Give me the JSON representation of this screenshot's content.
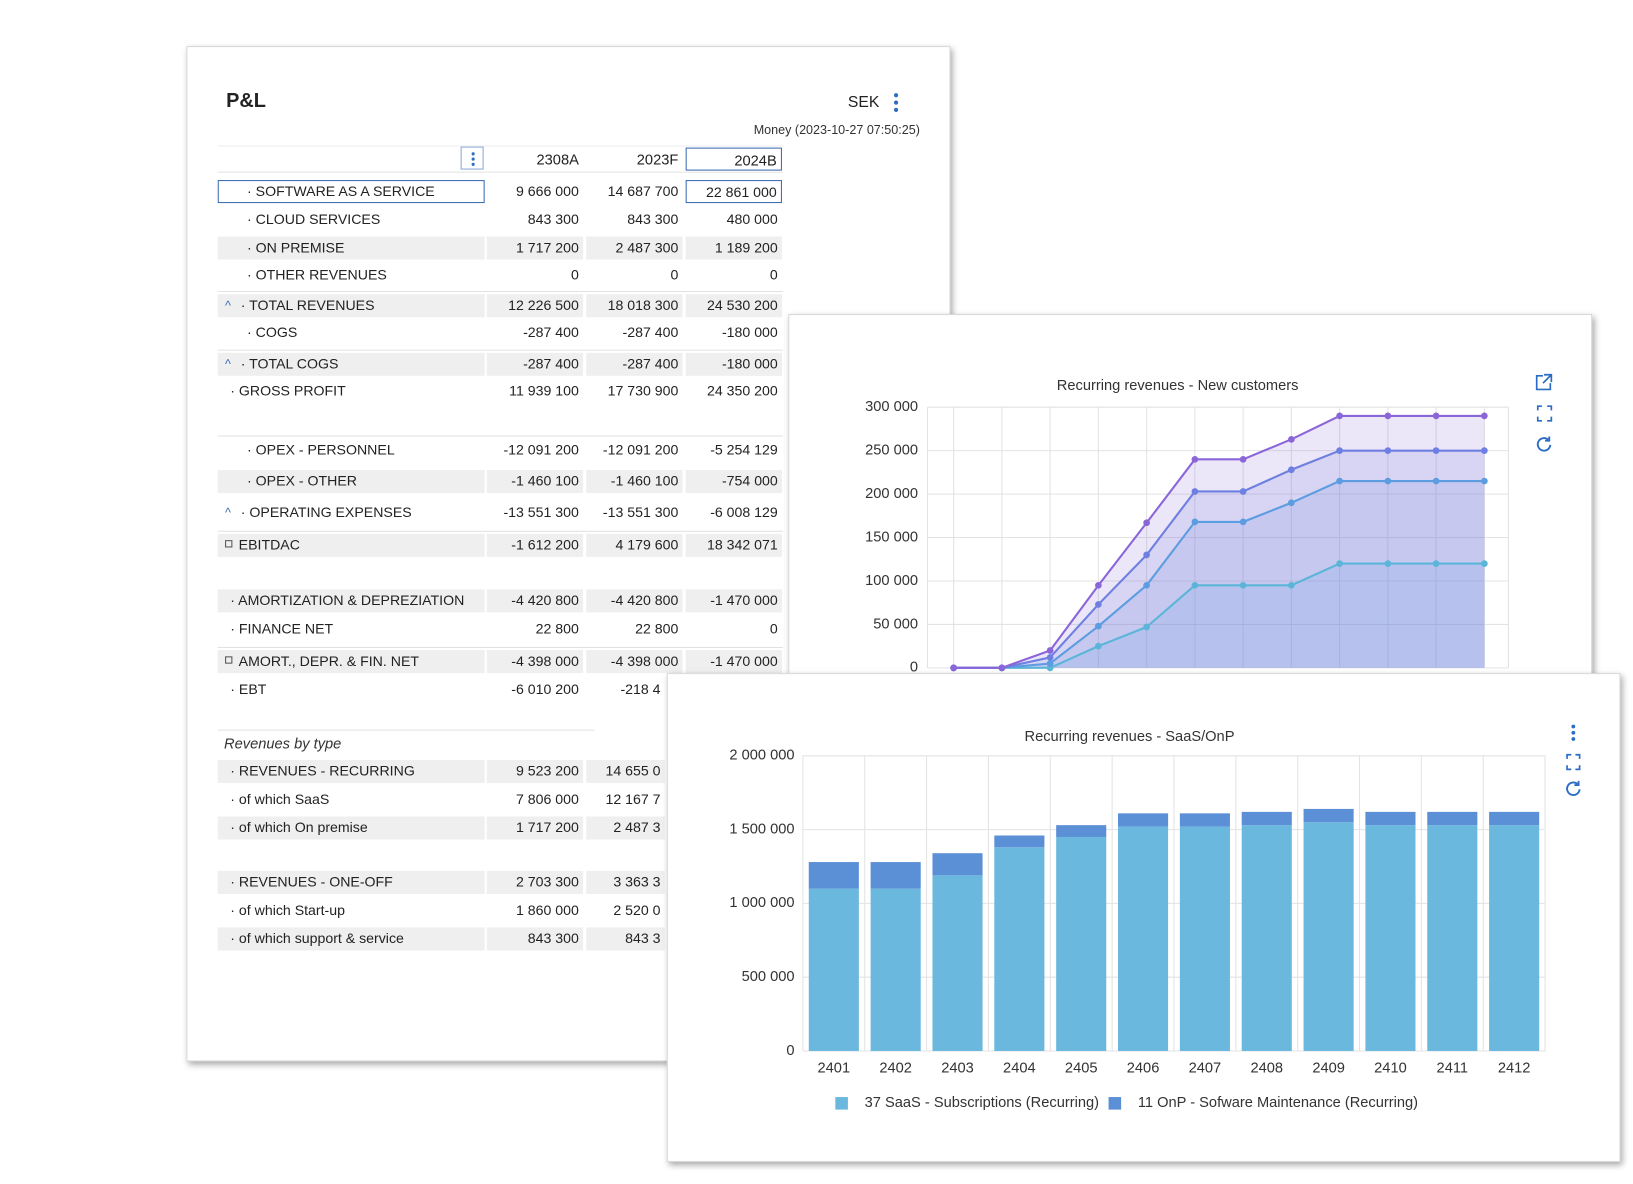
{
  "pnl": {
    "title": "P&L",
    "currency": "SEK",
    "timestamp": "Money (2023-10-27 07:50:25)",
    "columns": [
      "2308A",
      "2023F",
      "2024B"
    ],
    "rows": [
      {
        "label": "· SOFTWARE AS A SERVICE",
        "values": [
          "9 666 000",
          "14 687 700",
          "22 861 000"
        ]
      },
      {
        "label": "· CLOUD SERVICES",
        "values": [
          "843 300",
          "843 300",
          "480 000"
        ]
      },
      {
        "label": "· ON PREMISE",
        "values": [
          "1 717 200",
          "2 487 300",
          "1 189 200"
        ]
      },
      {
        "label": "· OTHER REVENUES",
        "values": [
          "0",
          "0",
          "0"
        ]
      },
      {
        "label": "· TOTAL REVENUES",
        "values": [
          "12 226 500",
          "18 018 300",
          "24 530 200"
        ]
      },
      {
        "label": "· COGS",
        "values": [
          "-287 400",
          "-287 400",
          "-180 000"
        ]
      },
      {
        "label": "· TOTAL COGS",
        "values": [
          "-287 400",
          "-287 400",
          "-180 000"
        ]
      },
      {
        "label": "· GROSS PROFIT",
        "values": [
          "11 939 100",
          "17 730 900",
          "24 350 200"
        ]
      },
      {
        "label": "· OPEX - PERSONNEL",
        "values": [
          "-12 091 200",
          "-12 091 200",
          "-5 254 129"
        ]
      },
      {
        "label": "· OPEX - OTHER",
        "values": [
          "-1 460 100",
          "-1 460 100",
          "-754 000"
        ]
      },
      {
        "label": "· OPERATING EXPENSES",
        "values": [
          "-13 551 300",
          "-13 551 300",
          "-6 008 129"
        ]
      },
      {
        "label": "EBITDAC",
        "values": [
          "-1 612 200",
          "4 179 600",
          "18 342 071"
        ]
      },
      {
        "label": "· AMORTIZATION & DEPREZIATION",
        "values": [
          "-4 420 800",
          "-4 420 800",
          "-1 470 000"
        ]
      },
      {
        "label": "· FINANCE NET",
        "values": [
          "22 800",
          "22 800",
          "0"
        ]
      },
      {
        "label": "AMORT., DEPR. & FIN. NET",
        "values": [
          "-4 398 000",
          "-4 398 000",
          "-1 470 000"
        ]
      },
      {
        "label": "· EBT",
        "values": [
          "-6 010 200",
          "-218 4"
        ]
      },
      {
        "label": "· REVENUES - RECURRING",
        "values": [
          "9 523 200",
          "14 655 0"
        ]
      },
      {
        "label": "· of which SaaS",
        "values": [
          "7 806 000",
          "12 167 7"
        ]
      },
      {
        "label": "· of which On premise",
        "values": [
          "1 717 200",
          "2 487 3"
        ]
      },
      {
        "label": "· REVENUES - ONE-OFF",
        "values": [
          "2 703 300",
          "3 363 3"
        ]
      },
      {
        "label": "· of which Start-up",
        "values": [
          "1 860 000",
          "2 520 0"
        ]
      },
      {
        "label": "· of which support & service",
        "values": [
          "843 300",
          "843 3"
        ]
      }
    ],
    "section": "Revenues by type"
  },
  "chart_data": [
    {
      "type": "line",
      "title": "Recurring revenues - New customers",
      "ylim": [
        0,
        300000
      ],
      "yticks": [
        0,
        {
          "value": 50000,
          "label": "50 000"
        },
        {
          "value": 100000,
          "label": "100 000"
        },
        {
          "value": 150000,
          "label": "150 000"
        },
        {
          "value": 200000,
          "label": "200 000"
        },
        {
          "value": 250000,
          "label": "250 000"
        },
        {
          "value": 300000,
          "label": "300 000"
        }
      ],
      "grid": true,
      "series": [
        {
          "color": "#5bb5d8",
          "values": [
            0,
            0,
            0,
            25000,
            47000,
            95000,
            95000,
            95000,
            120000,
            120000,
            120000,
            120000
          ]
        },
        {
          "color": "#5c9ce0",
          "values": [
            0,
            0,
            5000,
            48000,
            95000,
            168000,
            168000,
            190000,
            215000,
            215000,
            215000,
            215000
          ]
        },
        {
          "color": "#6d7fe0",
          "values": [
            0,
            0,
            12000,
            73000,
            130000,
            203000,
            203000,
            228000,
            250000,
            250000,
            250000,
            250000
          ]
        },
        {
          "color": "#8a66d9",
          "values": [
            0,
            0,
            20000,
            95000,
            167000,
            240000,
            240000,
            263000,
            290000,
            290000,
            290000,
            290000
          ]
        }
      ]
    },
    {
      "type": "bar",
      "stacked": true,
      "title": "Recurring revenues - SaaS/OnP",
      "categories": [
        "2401",
        "2402",
        "2403",
        "2404",
        "2405",
        "2406",
        "2407",
        "2408",
        "2409",
        "2410",
        "2411",
        "2412"
      ],
      "ylim": [
        0,
        2000000
      ],
      "yticks": [
        0,
        {
          "value": 500000,
          "label": "500 000"
        },
        {
          "value": 1000000,
          "label": "1 000 000"
        },
        {
          "value": 1500000,
          "label": "1 500 000"
        },
        {
          "value": 2000000,
          "label": "2 000 000"
        }
      ],
      "grid": true,
      "legend": "bottom",
      "series": [
        {
          "name": "37 SaaS - Subscriptions (Recurring)",
          "color": "#6bb8de",
          "values": [
            1100000,
            1100000,
            1190000,
            1380000,
            1450000,
            1520000,
            1520000,
            1530000,
            1550000,
            1530000,
            1530000,
            1530000
          ]
        },
        {
          "name": "11 OnP - Sofware Maintenance (Recurring)",
          "color": "#5b8fd6",
          "values": [
            180000,
            180000,
            150000,
            80000,
            80000,
            90000,
            90000,
            90000,
            90000,
            90000,
            90000,
            90000
          ]
        }
      ]
    }
  ]
}
